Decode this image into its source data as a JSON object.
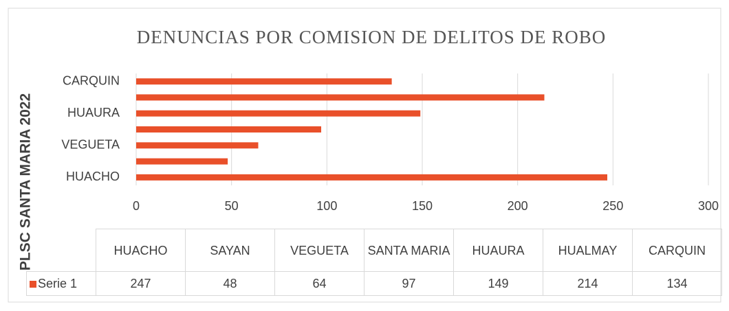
{
  "chart_data": {
    "type": "bar",
    "orientation": "horizontal",
    "title": "DENUNCIAS POR COMISION DE DELITOS DE ROBO",
    "y_label": "PLSC SANTA MARIA 2022",
    "categories": [
      "HUACHO",
      "SAYAN",
      "VEGUETA",
      "SANTA MARIA",
      "HUAURA",
      "HUALMAY",
      "CARQUIN"
    ],
    "series": [
      {
        "name": "Serie 1",
        "color": "#e9502a",
        "values": [
          247,
          48,
          64,
          97,
          149,
          214,
          134
        ]
      }
    ],
    "xlim": [
      0,
      300
    ],
    "xticks": [
      0,
      50,
      100,
      150,
      200,
      250,
      300
    ],
    "grid": true,
    "data_table": true
  }
}
